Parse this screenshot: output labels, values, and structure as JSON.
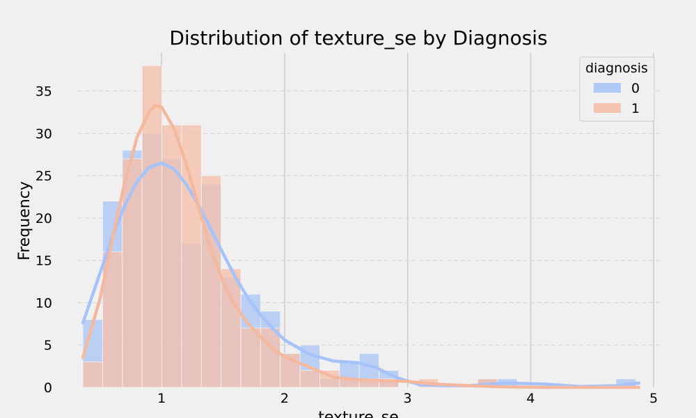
{
  "chart_data": {
    "type": "bar",
    "subtype": "overlaid-histogram-with-kde",
    "title": "Distribution of texture_se by Diagnosis",
    "xlabel": "texture_se",
    "ylabel": "Frequency",
    "xlim": [
      0.32,
      5.05
    ],
    "ylim": [
      0,
      39.5
    ],
    "xticks": [
      1,
      2,
      3,
      4,
      5
    ],
    "yticks": [
      0,
      5,
      10,
      15,
      20,
      25,
      30,
      35
    ],
    "grid": {
      "x": "solid",
      "y": "dashed"
    },
    "legend": {
      "title": "diagnosis",
      "placement": "top-right"
    },
    "bin_start": 0.36,
    "bin_width": 0.1605,
    "series": [
      {
        "name": "0",
        "color": "#aac4f7",
        "kde_color": "#a6c2fa",
        "counts": [
          8,
          22,
          28,
          30,
          27,
          17,
          24,
          13,
          11,
          9,
          4,
          5,
          1,
          3,
          4,
          2,
          0,
          0,
          0,
          0,
          1,
          1,
          0,
          0,
          0,
          0,
          0,
          1
        ],
        "kde_x": [
          0.36,
          0.5,
          0.6,
          0.7,
          0.8,
          0.9,
          1.0,
          1.1,
          1.2,
          1.3,
          1.4,
          1.5,
          1.6,
          1.7,
          1.8,
          1.9,
          2.0,
          2.2,
          2.4,
          2.6,
          2.75,
          2.9,
          3.1,
          3.3,
          3.5,
          3.8,
          4.1,
          4.4,
          4.7,
          4.88
        ],
        "kde_y": [
          7.6,
          13.5,
          17.8,
          21.5,
          24.3,
          26.0,
          26.5,
          25.8,
          24.0,
          21.5,
          18.7,
          15.8,
          13.0,
          10.6,
          8.6,
          7.0,
          5.6,
          3.9,
          3.1,
          2.9,
          2.3,
          1.2,
          0.3,
          0.2,
          0.2,
          0.5,
          0.4,
          0.1,
          0.2,
          0.5
        ]
      },
      {
        "name": "1",
        "color": "#f5bfa8",
        "kde_color": "#f4b89e",
        "counts": [
          3,
          16,
          27,
          38,
          31,
          31,
          25,
          14,
          7,
          7,
          4,
          2,
          2,
          1,
          1,
          1,
          0,
          1,
          0,
          0,
          1,
          0,
          0,
          0,
          0,
          0,
          0,
          0
        ],
        "kde_x": [
          0.36,
          0.5,
          0.6,
          0.7,
          0.8,
          0.9,
          0.95,
          1.0,
          1.1,
          1.2,
          1.3,
          1.4,
          1.5,
          1.6,
          1.7,
          1.8,
          1.9,
          2.0,
          2.2,
          2.4,
          2.6,
          2.8,
          3.0,
          3.2,
          3.5,
          3.8,
          4.1,
          4.5,
          4.88
        ],
        "kde_y": [
          3.5,
          10.5,
          17.5,
          24.2,
          29.5,
          32.6,
          33.3,
          33.1,
          30.6,
          26.4,
          21.3,
          16.4,
          12.4,
          9.6,
          7.6,
          6.0,
          4.6,
          3.6,
          2.4,
          1.2,
          0.9,
          0.8,
          0.7,
          0.4,
          0.2,
          0.05,
          0.0,
          0.0,
          0.0
        ]
      }
    ]
  }
}
